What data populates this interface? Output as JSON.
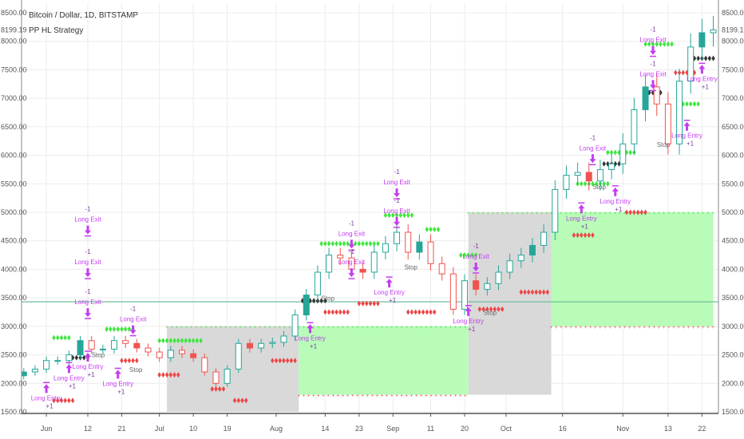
{
  "header": {
    "symbol_title": "Bitcoin / Dollar, 1D, BITSTAMP",
    "study_title": "PP HL Strategy"
  },
  "last_price": "8199.19",
  "colors": {
    "up": "#26a69a",
    "down": "#ef5350",
    "signal": "#c43cf0",
    "marker_green": "#3ee63e",
    "marker_red": "#ee4444",
    "marker_black": "#333333",
    "zone_gray": "#d9d9d9",
    "zone_green": "#b8fcb8",
    "level_line": "#6fbf9a"
  },
  "chart_data": {
    "type": "candlestick",
    "title": "Bitcoin / Dollar, 1D, BITSTAMP",
    "ylim": [
      1500,
      8500
    ],
    "grid": true,
    "y_ticks": [
      "1500.00",
      "2000.00",
      "2500.00",
      "3000.00",
      "3500.00",
      "4000.00",
      "4500.00",
      "5000.00",
      "5500.00",
      "6000.00",
      "6500.00",
      "7000.00",
      "7500.00",
      "8000.00",
      "8500.00"
    ],
    "x_ticks": [
      {
        "label": "Jun",
        "date": "Jun 1"
      },
      {
        "label": "12",
        "date": "Jun 12"
      },
      {
        "label": "21",
        "date": "Jun 21"
      },
      {
        "label": "Jul",
        "date": "Jul 1"
      },
      {
        "label": "10",
        "date": "Jul 10"
      },
      {
        "label": "19",
        "date": "Jul 19"
      },
      {
        "label": "Aug",
        "date": "Aug 1"
      },
      {
        "label": "14",
        "date": "Aug 14"
      },
      {
        "label": "23",
        "date": "Aug 23"
      },
      {
        "label": "Sep",
        "date": "Sep 1"
      },
      {
        "label": "11",
        "date": "Sep 11"
      },
      {
        "label": "20",
        "date": "Sep 20"
      },
      {
        "label": "Oct",
        "date": "Oct 1"
      },
      {
        "label": "16",
        "date": "Oct 16"
      },
      {
        "label": "Nov",
        "date": "Nov 1"
      },
      {
        "label": "13",
        "date": "Nov 13"
      },
      {
        "label": "22",
        "date": "Nov 22"
      }
    ],
    "dates": [
      "May 26",
      "May 29",
      "Jun 1",
      "Jun 4",
      "Jun 7",
      "Jun 10",
      "Jun 13",
      "Jun 16",
      "Jun 19",
      "Jun 22",
      "Jun 25",
      "Jun 28",
      "Jul 1",
      "Jul 4",
      "Jul 7",
      "Jul 10",
      "Jul 13",
      "Jul 16",
      "Jul 19",
      "Jul 22",
      "Jul 25",
      "Jul 28",
      "Jul 31",
      "Aug 3",
      "Aug 6",
      "Aug 9",
      "Aug 12",
      "Aug 15",
      "Aug 18",
      "Aug 21",
      "Aug 24",
      "Aug 27",
      "Aug 30",
      "Sep 2",
      "Sep 5",
      "Sep 8",
      "Sep 11",
      "Sep 14",
      "Sep 17",
      "Sep 20",
      "Sep 23",
      "Sep 26",
      "Sep 29",
      "Oct 2",
      "Oct 5",
      "Oct 8",
      "Oct 11",
      "Oct 14",
      "Oct 17",
      "Oct 20",
      "Oct 23",
      "Oct 26",
      "Oct 29",
      "Nov 1",
      "Nov 4",
      "Nov 7",
      "Nov 10",
      "Nov 13",
      "Nov 16",
      "Nov 19",
      "Nov 22",
      "Nov 25"
    ],
    "close": [
      2200,
      2250,
      2400,
      2400,
      2500,
      2750,
      2600,
      2600,
      2750,
      2700,
      2620,
      2550,
      2450,
      2580,
      2520,
      2450,
      2200,
      2000,
      2250,
      2700,
      2620,
      2700,
      2720,
      2830,
      3200,
      3550,
      3950,
      4250,
      4200,
      4000,
      3950,
      4300,
      4450,
      4650,
      4300,
      4480,
      4100,
      3920,
      3300,
      3800,
      3650,
      3750,
      3950,
      4150,
      4250,
      4420,
      4650,
      5400,
      5650,
      5700,
      5550,
      5750,
      5850,
      6200,
      6800,
      7200,
      6900,
      6200,
      7300,
      7900,
      8150,
      8199.19
    ],
    "level_line": 3430,
    "zones": [
      {
        "start": "Jul 3",
        "end": "Aug 7",
        "upper": 3000,
        "lower": 1500,
        "kind": "gray"
      },
      {
        "start": "Aug 7",
        "end": "Sep 21",
        "upper": 3000,
        "lower": 1800,
        "kind": "green"
      },
      {
        "start": "Sep 21",
        "end": "Oct 13",
        "upper": 5000,
        "lower": 1800,
        "kind": "gray"
      },
      {
        "start": "Oct 13",
        "end": "Nov 25",
        "upper": 5000,
        "lower": 3000,
        "kind": "green"
      }
    ],
    "marker_rows": [
      {
        "kind": "green",
        "from": "Jun 3",
        "to": "Jun 7",
        "price": 2800
      },
      {
        "kind": "green",
        "from": "Jun 17",
        "to": "Jun 24",
        "price": 2950
      },
      {
        "kind": "green",
        "from": "Jul 1",
        "to": "Jul 12",
        "price": 2750
      },
      {
        "kind": "green",
        "from": "Aug 13",
        "to": "Aug 28",
        "price": 4450
      },
      {
        "kind": "green",
        "from": "Aug 30",
        "to": "Sep 6",
        "price": 4950
      },
      {
        "kind": "green",
        "from": "Sep 10",
        "to": "Sep 13",
        "price": 4700
      },
      {
        "kind": "green",
        "from": "Sep 19",
        "to": "Sep 23",
        "price": 4250
      },
      {
        "kind": "green",
        "from": "Oct 20",
        "to": "Oct 28",
        "price": 5500
      },
      {
        "kind": "green",
        "from": "Oct 28",
        "to": "Nov 4",
        "price": 6050
      },
      {
        "kind": "green",
        "from": "Nov 7",
        "to": "Nov 14",
        "price": 7950
      },
      {
        "kind": "green",
        "from": "Nov 17",
        "to": "Nov 21",
        "price": 6900
      },
      {
        "kind": "red",
        "from": "Jun 3",
        "to": "Jun 8",
        "price": 1700
      },
      {
        "kind": "red",
        "from": "Jun 21",
        "to": "Jun 25",
        "price": 2400
      },
      {
        "kind": "red",
        "from": "Jul 1",
        "to": "Jul 6",
        "price": 2150
      },
      {
        "kind": "red",
        "from": "Jul 15",
        "to": "Jul 18",
        "price": 1900
      },
      {
        "kind": "red",
        "from": "Jul 21",
        "to": "Jul 24",
        "price": 1700
      },
      {
        "kind": "red",
        "from": "Jul 31",
        "to": "Aug 6",
        "price": 2400
      },
      {
        "kind": "red",
        "from": "Aug 14",
        "to": "Aug 20",
        "price": 3250
      },
      {
        "kind": "red",
        "from": "Aug 23",
        "to": "Aug 28",
        "price": 3400
      },
      {
        "kind": "red",
        "from": "Sep 5",
        "to": "Sep 12",
        "price": 3250
      },
      {
        "kind": "red",
        "from": "Sep 24",
        "to": "Sep 30",
        "price": 3300
      },
      {
        "kind": "red",
        "from": "Oct 5",
        "to": "Oct 12",
        "price": 3600
      },
      {
        "kind": "red",
        "from": "Oct 19",
        "to": "Oct 24",
        "price": 4600
      },
      {
        "kind": "red",
        "from": "Nov 2",
        "to": "Nov 7",
        "price": 5000
      },
      {
        "kind": "red",
        "from": "Nov 15",
        "to": "Nov 20",
        "price": 7450
      },
      {
        "kind": "black",
        "from": "Jun 8",
        "to": "Jun 12",
        "price": 2450
      },
      {
        "kind": "black",
        "from": "Aug 8",
        "to": "Aug 14",
        "price": 3450
      },
      {
        "kind": "black",
        "from": "Oct 27",
        "to": "Oct 31",
        "price": 5850
      },
      {
        "kind": "black",
        "from": "Nov 7",
        "to": "Nov 11",
        "price": 7100
      },
      {
        "kind": "black",
        "from": "Nov 20",
        "to": "Nov 25",
        "price": 7700
      }
    ],
    "signals": [
      {
        "date": "Jun 12",
        "price": 4600,
        "label": "Long Exit",
        "qty": "-1",
        "dir": "down"
      },
      {
        "date": "Jun 12",
        "price": 3850,
        "label": "Long Exit",
        "qty": "-1",
        "dir": "down"
      },
      {
        "date": "Jun 12",
        "price": 3150,
        "label": "Long Exit",
        "qty": "-1",
        "dir": "down"
      },
      {
        "date": "Jun 1",
        "price": 2000,
        "label": "Long Entry",
        "qty": "+1",
        "dir": "up"
      },
      {
        "date": "Jun 7",
        "price": 2350,
        "label": "Long Entry",
        "qty": "+1",
        "dir": "up"
      },
      {
        "date": "Jun 12",
        "price": 2550,
        "label": "Long Entry",
        "qty": "+1",
        "dir": "up"
      },
      {
        "date": "Jun 24",
        "price": 2850,
        "label": "Long Exit",
        "qty": "-1",
        "dir": "down"
      },
      {
        "date": "Jun 20",
        "price": 2250,
        "label": "Long Entry",
        "qty": "+1",
        "dir": "up"
      },
      {
        "date": "Aug 21",
        "price": 4350,
        "label": "Long Exit",
        "qty": "-1",
        "dir": "down"
      },
      {
        "date": "Aug 21",
        "price": 3850,
        "label": "Long Exit",
        "qty": "-1",
        "dir": "down"
      },
      {
        "date": "Aug 10",
        "price": 3050,
        "label": "Long Entry",
        "qty": "+1",
        "dir": "up"
      },
      {
        "date": "Sep 2",
        "price": 5250,
        "label": "Long Exit",
        "qty": "-1",
        "dir": "down"
      },
      {
        "date": "Sep 2",
        "price": 4750,
        "label": "Long Exit",
        "qty": "-1",
        "dir": "down"
      },
      {
        "date": "Aug 31",
        "price": 3850,
        "label": "Long Entry",
        "qty": "+1",
        "dir": "up"
      },
      {
        "date": "Sep 23",
        "price": 3950,
        "label": "Long Exit",
        "qty": "-1",
        "dir": "down"
      },
      {
        "date": "Sep 21",
        "price": 3350,
        "label": "Long Entry",
        "qty": "+1",
        "dir": "up"
      },
      {
        "date": "Oct 24",
        "price": 5850,
        "label": "Long Exit",
        "qty": "-1",
        "dir": "down"
      },
      {
        "date": "Oct 21",
        "price": 5150,
        "label": "Long Entry",
        "qty": "+1",
        "dir": "up"
      },
      {
        "date": "Oct 30",
        "price": 5450,
        "label": "Long Entry",
        "qty": "+1",
        "dir": "up"
      },
      {
        "date": "Nov 9",
        "price": 7750,
        "label": "Long Exit",
        "qty": "-1",
        "dir": "down"
      },
      {
        "date": "Nov 9",
        "price": 7150,
        "label": "Long Exit",
        "qty": "-1",
        "dir": "down"
      },
      {
        "date": "Nov 18",
        "price": 6600,
        "label": "Long Entry",
        "qty": "+1",
        "dir": "up"
      },
      {
        "date": "Nov 22",
        "price": 7600,
        "label": "Long Entry",
        "qty": "+1",
        "dir": "up"
      }
    ],
    "stops": [
      {
        "date": "Jun 13",
        "price": 2150,
        "label": "Stop"
      },
      {
        "date": "Jun 23",
        "price": 2200,
        "label": "Stop"
      },
      {
        "date": "Aug 13",
        "price": 3450,
        "label": "Stop"
      },
      {
        "date": "Sep 4",
        "price": 4000,
        "label": "Stop"
      },
      {
        "date": "Sep 25",
        "price": 3200,
        "label": "Stop"
      },
      {
        "date": "Oct 24",
        "price": 5100,
        "label": "Stop"
      },
      {
        "date": "Nov 10",
        "price": 6150,
        "label": "Stop"
      }
    ]
  }
}
